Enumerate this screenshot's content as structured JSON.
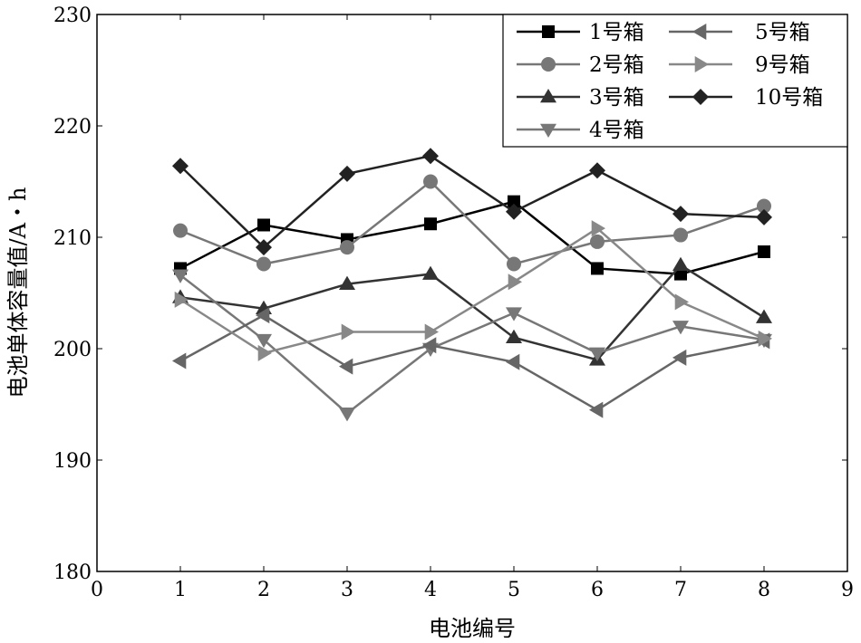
{
  "chart_data": {
    "type": "line",
    "title": "",
    "xlabel": "电池编号",
    "ylabel": "电池单体容量值/A・h",
    "xlim": [
      0,
      9
    ],
    "ylim": [
      180,
      230
    ],
    "xticks": [
      0,
      1,
      2,
      3,
      4,
      5,
      6,
      7,
      8,
      9
    ],
    "yticks": [
      180,
      190,
      200,
      210,
      220,
      230
    ],
    "grid": false,
    "legend_position": "top-right",
    "x": [
      1,
      2,
      3,
      4,
      5,
      6,
      7,
      8
    ],
    "series": [
      {
        "name": "1号箱",
        "marker": "square",
        "color": "#000000",
        "values": [
          207.2,
          211.1,
          209.8,
          211.2,
          213.2,
          207.2,
          206.7,
          208.7
        ]
      },
      {
        "name": "2号箱",
        "marker": "circle",
        "color": "#777777",
        "values": [
          210.6,
          207.6,
          209.1,
          215.0,
          207.6,
          209.6,
          210.2,
          212.8
        ]
      },
      {
        "name": "3号箱",
        "marker": "triangle-up",
        "color": "#333333",
        "values": [
          204.6,
          203.6,
          205.8,
          206.7,
          201.0,
          199.0,
          207.5,
          202.8
        ]
      },
      {
        "name": "4号箱",
        "marker": "triangle-down",
        "color": "#777777",
        "values": [
          206.6,
          200.8,
          194.2,
          200.0,
          203.2,
          199.6,
          202.0,
          200.8
        ]
      },
      {
        "name": "5号箱",
        "marker": "triangle-left",
        "color": "#666666",
        "values": [
          198.9,
          203.0,
          198.4,
          200.3,
          198.8,
          194.5,
          199.2,
          200.7
        ]
      },
      {
        "name": "9号箱",
        "marker": "triangle-right",
        "color": "#888888",
        "values": [
          204.4,
          199.6,
          201.5,
          201.5,
          206.0,
          210.8,
          204.2,
          200.9
        ]
      },
      {
        "name": "10号箱",
        "marker": "diamond",
        "color": "#222222",
        "values": [
          216.4,
          209.1,
          215.7,
          217.3,
          212.3,
          216.0,
          212.1,
          211.8
        ]
      }
    ]
  }
}
